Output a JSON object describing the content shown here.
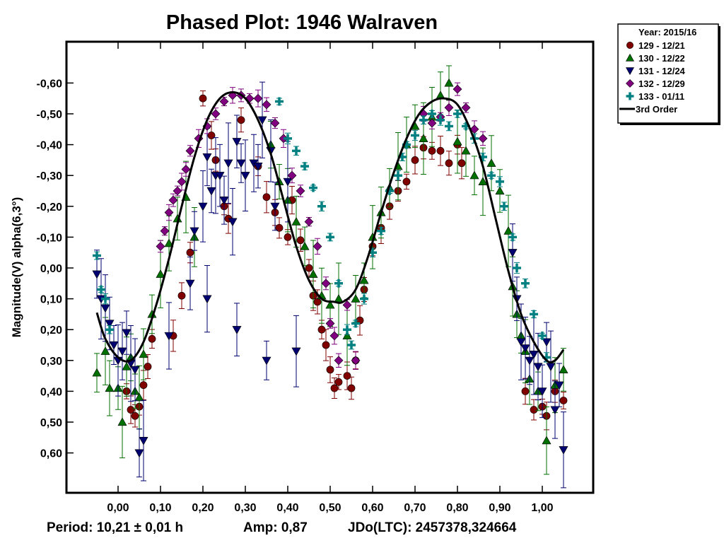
{
  "chart_data": {
    "type": "scatter",
    "title": "Phased Plot: 1946 Walraven",
    "xlabel": "",
    "ylabel": "Magnitude(V) alpha(6,3°)",
    "xlim": [
      -0.12,
      1.12
    ],
    "ylim": [
      -0.72,
      0.73
    ],
    "y_inverted": true,
    "grid": false,
    "x_ticks": [
      0.0,
      0.1,
      0.2,
      0.3,
      0.4,
      0.5,
      0.6,
      0.7,
      0.8,
      0.9,
      1.0
    ],
    "x_tick_labels": [
      "0,00",
      "0,10",
      "0,20",
      "0,30",
      "0,40",
      "0,50",
      "0,60",
      "0,70",
      "0,80",
      "0,90",
      "1,00"
    ],
    "y_ticks": [
      -0.6,
      -0.5,
      -0.4,
      -0.3,
      -0.2,
      -0.1,
      0.0,
      0.1,
      0.2,
      0.3,
      0.4,
      0.5,
      0.6
    ],
    "y_tick_labels": [
      "-0,60",
      "-0,50",
      "-0,40",
      "-0,30",
      "-0,20",
      "-0,10",
      "0,00",
      "0,10",
      "0,20",
      "0,30",
      "0,40",
      "0,50",
      "0,60"
    ],
    "legend": {
      "placement": "outside-top-right",
      "header": "Year: 2015/16",
      "entries": [
        "129 - 12/21",
        "130 - 12/22",
        "131 - 12/24",
        "132 - 12/29",
        "133 - 01/11",
        "3rd Order"
      ]
    },
    "series": [
      {
        "name": "129 - 12/21",
        "marker": "circle",
        "color": "#800000",
        "points": [
          [
            0.02,
            0.4
          ],
          [
            0.03,
            0.46
          ],
          [
            0.04,
            0.48
          ],
          [
            0.05,
            0.45
          ],
          [
            0.06,
            0.38
          ],
          [
            0.07,
            0.32
          ],
          [
            0.08,
            0.23
          ],
          [
            0.13,
            0.22
          ],
          [
            0.15,
            0.09
          ],
          [
            0.17,
            -0.05
          ],
          [
            0.2,
            -0.55
          ],
          [
            0.22,
            -0.43
          ],
          [
            0.23,
            -0.35
          ],
          [
            0.25,
            -0.2
          ],
          [
            0.26,
            -0.16
          ],
          [
            0.29,
            -0.48
          ],
          [
            0.33,
            -0.33
          ],
          [
            0.35,
            -0.23
          ],
          [
            0.37,
            -0.18
          ],
          [
            0.38,
            -0.13
          ],
          [
            0.4,
            -0.1
          ],
          [
            0.41,
            -0.22
          ],
          [
            0.43,
            -0.09
          ],
          [
            0.45,
            0.0
          ],
          [
            0.46,
            0.09
          ],
          [
            0.47,
            0.11
          ],
          [
            0.48,
            0.2
          ],
          [
            0.49,
            0.25
          ],
          [
            0.5,
            0.33
          ],
          [
            0.51,
            0.39
          ],
          [
            0.52,
            0.37
          ],
          [
            0.54,
            0.35
          ],
          [
            0.55,
            0.39
          ],
          [
            0.56,
            0.3
          ],
          [
            0.57,
            0.17
          ],
          [
            0.58,
            0.07
          ],
          [
            0.6,
            -0.07
          ],
          [
            0.62,
            -0.13
          ],
          [
            0.64,
            -0.2
          ],
          [
            0.66,
            -0.25
          ],
          [
            0.68,
            -0.28
          ],
          [
            0.7,
            -0.35
          ],
          [
            0.72,
            -0.39
          ],
          [
            0.74,
            -0.38
          ],
          [
            0.76,
            -0.38
          ],
          [
            0.78,
            -0.34
          ],
          [
            0.8,
            -0.4
          ],
          [
            0.81,
            -0.34
          ],
          [
            0.96,
            0.4
          ],
          [
            0.98,
            0.46
          ],
          [
            1.0,
            0.45
          ],
          [
            1.01,
            0.48
          ],
          [
            1.03,
            0.4
          ],
          [
            1.05,
            0.43
          ]
        ]
      },
      {
        "name": "130 - 12/22",
        "marker": "triangle-up",
        "color": "#007000",
        "points": [
          [
            -0.05,
            0.34
          ],
          [
            -0.03,
            0.27
          ],
          [
            -0.02,
            0.39
          ],
          [
            0.0,
            0.39
          ],
          [
            0.01,
            0.5
          ],
          [
            0.02,
            0.32
          ],
          [
            0.03,
            0.29
          ],
          [
            0.04,
            0.4
          ],
          [
            0.05,
            0.42
          ],
          [
            0.06,
            0.28
          ],
          [
            0.08,
            0.15
          ],
          [
            0.1,
            0.02
          ],
          [
            0.12,
            -0.08
          ],
          [
            0.14,
            -0.16
          ],
          [
            0.16,
            -0.23
          ],
          [
            0.18,
            -0.1
          ],
          [
            0.36,
            -0.4
          ],
          [
            0.38,
            -0.28
          ],
          [
            0.4,
            -0.22
          ],
          [
            0.42,
            -0.15
          ],
          [
            0.44,
            -0.07
          ],
          [
            0.46,
            0.02
          ],
          [
            0.48,
            0.09
          ],
          [
            0.5,
            0.12
          ],
          [
            0.52,
            0.1
          ],
          [
            0.54,
            0.22
          ],
          [
            0.56,
            0.1
          ],
          [
            0.58,
            0.04
          ],
          [
            0.6,
            -0.1
          ],
          [
            0.62,
            -0.18
          ],
          [
            0.64,
            -0.26
          ],
          [
            0.66,
            -0.33
          ],
          [
            0.68,
            -0.4
          ],
          [
            0.7,
            -0.46
          ],
          [
            0.72,
            -0.42
          ],
          [
            0.74,
            -0.49
          ],
          [
            0.76,
            -0.56
          ],
          [
            0.78,
            -0.6
          ],
          [
            0.8,
            -0.41
          ],
          [
            0.82,
            -0.38
          ],
          [
            0.84,
            -0.3
          ],
          [
            0.86,
            -0.28
          ],
          [
            0.88,
            -0.34
          ],
          [
            0.9,
            -0.25
          ],
          [
            0.92,
            -0.12
          ],
          [
            0.93,
            0.06
          ],
          [
            0.94,
            0.15
          ],
          [
            0.95,
            0.22
          ],
          [
            0.96,
            0.27
          ],
          [
            0.97,
            0.36
          ],
          [
            0.99,
            0.4
          ],
          [
            1.01,
            0.56
          ],
          [
            1.03,
            0.38
          ],
          [
            1.05,
            0.33
          ]
        ]
      },
      {
        "name": "131 - 12/24",
        "marker": "triangle-down",
        "color": "#000070",
        "points": [
          [
            -0.05,
            0.02
          ],
          [
            -0.04,
            0.1
          ],
          [
            -0.03,
            0.13
          ],
          [
            -0.02,
            0.18
          ],
          [
            -0.01,
            0.25
          ],
          [
            0.0,
            0.3
          ],
          [
            0.01,
            0.27
          ],
          [
            0.02,
            0.21
          ],
          [
            0.03,
            0.31
          ],
          [
            0.04,
            0.33
          ],
          [
            0.05,
            0.6
          ],
          [
            0.06,
            0.56
          ],
          [
            0.12,
            0.22
          ],
          [
            0.17,
            0.05
          ],
          [
            0.18,
            -0.12
          ],
          [
            0.2,
            -0.2
          ],
          [
            0.21,
            -0.36
          ],
          [
            0.22,
            -0.25
          ],
          [
            0.23,
            -0.3
          ],
          [
            0.24,
            -0.3
          ],
          [
            0.25,
            -0.22
          ],
          [
            0.26,
            -0.34
          ],
          [
            0.27,
            -0.15
          ],
          [
            0.28,
            -0.41
          ],
          [
            0.29,
            -0.34
          ],
          [
            0.3,
            -0.3
          ],
          [
            0.32,
            -0.34
          ],
          [
            0.33,
            -0.33
          ],
          [
            0.34,
            -0.48
          ],
          [
            0.36,
            -0.38
          ],
          [
            0.37,
            -0.2
          ],
          [
            0.4,
            -0.28
          ],
          [
            0.21,
            0.1
          ],
          [
            0.28,
            0.2
          ],
          [
            0.35,
            0.3
          ],
          [
            0.42,
            0.27
          ],
          [
            0.93,
            -0.05
          ],
          [
            0.94,
            0.1
          ],
          [
            0.95,
            0.24
          ],
          [
            0.96,
            0.26
          ],
          [
            0.97,
            0.3
          ],
          [
            0.98,
            0.28
          ],
          [
            0.99,
            0.32
          ],
          [
            1.0,
            0.4
          ],
          [
            1.01,
            0.24
          ],
          [
            1.02,
            0.32
          ],
          [
            1.03,
            0.46
          ],
          [
            1.04,
            0.38
          ],
          [
            1.05,
            0.59
          ]
        ]
      },
      {
        "name": "132 - 12/29",
        "marker": "diamond",
        "color": "#800080",
        "points": [
          [
            0.1,
            -0.07
          ],
          [
            0.11,
            -0.12
          ],
          [
            0.12,
            -0.18
          ],
          [
            0.13,
            -0.22
          ],
          [
            0.14,
            -0.25
          ],
          [
            0.15,
            -0.28
          ],
          [
            0.16,
            -0.32
          ],
          [
            0.17,
            -0.38
          ],
          [
            0.19,
            -0.42
          ],
          [
            0.21,
            -0.46
          ],
          [
            0.23,
            -0.5
          ],
          [
            0.25,
            -0.54
          ],
          [
            0.27,
            -0.56
          ],
          [
            0.29,
            -0.56
          ],
          [
            0.31,
            -0.55
          ],
          [
            0.33,
            -0.55
          ],
          [
            0.35,
            -0.53
          ],
          [
            0.37,
            -0.47
          ],
          [
            0.39,
            -0.42
          ],
          [
            0.41,
            -0.3
          ],
          [
            0.43,
            -0.25
          ],
          [
            0.45,
            -0.15
          ],
          [
            0.47,
            -0.07
          ],
          [
            0.49,
            0.05
          ],
          [
            0.5,
            0.18
          ],
          [
            0.51,
            0.22
          ],
          [
            0.52,
            0.3
          ],
          [
            0.54,
            0.12
          ],
          [
            0.56,
            0.3
          ],
          [
            0.72,
            -0.5
          ],
          [
            0.74,
            -0.47
          ],
          [
            0.76,
            -0.49
          ],
          [
            0.78,
            -0.52
          ],
          [
            0.8,
            -0.58
          ],
          [
            0.82,
            -0.52
          ],
          [
            0.84,
            -0.45
          ],
          [
            0.86,
            -0.42
          ]
        ]
      },
      {
        "name": "133 - 01/11",
        "marker": "plus",
        "color": "#008080",
        "points": [
          [
            -0.05,
            -0.04
          ],
          [
            -0.04,
            0.07
          ],
          [
            -0.03,
            0.1
          ],
          [
            -0.02,
            0.2
          ],
          [
            0.38,
            -0.54
          ],
          [
            0.4,
            -0.42
          ],
          [
            0.42,
            -0.38
          ],
          [
            0.44,
            -0.33
          ],
          [
            0.46,
            -0.26
          ],
          [
            0.48,
            -0.2
          ],
          [
            0.5,
            -0.1
          ],
          [
            0.52,
            0.05
          ],
          [
            0.54,
            0.2
          ],
          [
            0.55,
            0.25
          ],
          [
            0.56,
            0.18
          ],
          [
            0.58,
            0.1
          ],
          [
            0.6,
            -0.05
          ],
          [
            0.62,
            -0.12
          ],
          [
            0.64,
            -0.25
          ],
          [
            0.66,
            -0.3
          ],
          [
            0.67,
            -0.36
          ],
          [
            0.68,
            -0.4
          ],
          [
            0.7,
            -0.43
          ],
          [
            0.72,
            -0.48
          ],
          [
            0.74,
            -0.5
          ],
          [
            0.76,
            -0.48
          ],
          [
            0.78,
            -0.46
          ],
          [
            0.8,
            -0.5
          ],
          [
            0.82,
            -0.46
          ],
          [
            0.84,
            -0.42
          ],
          [
            0.86,
            -0.36
          ],
          [
            0.88,
            -0.3
          ],
          [
            0.9,
            -0.28
          ],
          [
            0.91,
            -0.2
          ],
          [
            0.93,
            -0.1
          ],
          [
            0.94,
            0.0
          ],
          [
            0.96,
            0.05
          ],
          [
            0.98,
            0.15
          ],
          [
            1.0,
            0.22
          ],
          [
            1.01,
            0.29
          ]
        ]
      }
    ],
    "fit": {
      "name": "3rd Order",
      "color": "#000000",
      "x": [
        -0.05,
        -0.03,
        0.0,
        0.03,
        0.06,
        0.09,
        0.12,
        0.15,
        0.18,
        0.21,
        0.24,
        0.27,
        0.3,
        0.33,
        0.36,
        0.39,
        0.42,
        0.45,
        0.48,
        0.51,
        0.53,
        0.56,
        0.59,
        0.62,
        0.65,
        0.68,
        0.71,
        0.74,
        0.77,
        0.8,
        0.83,
        0.86,
        0.89,
        0.92,
        0.95,
        0.98,
        1.01,
        1.03,
        1.05
      ],
      "y": [
        0.145,
        0.23,
        0.29,
        0.3,
        0.24,
        0.12,
        -0.03,
        -0.2,
        -0.36,
        -0.48,
        -0.55,
        -0.57,
        -0.55,
        -0.48,
        -0.37,
        -0.22,
        -0.07,
        0.04,
        0.1,
        0.11,
        0.11,
        0.07,
        -0.04,
        -0.18,
        -0.31,
        -0.42,
        -0.5,
        -0.54,
        -0.55,
        -0.53,
        -0.45,
        -0.33,
        -0.16,
        0.01,
        0.15,
        0.24,
        0.3,
        0.3,
        0.265
      ]
    },
    "footer": {
      "period": "Period: 10,21 ± 0,01 h",
      "amp": "Amp: 0,87",
      "jdo": "JDo(LTC): 2457378,324664"
    }
  }
}
